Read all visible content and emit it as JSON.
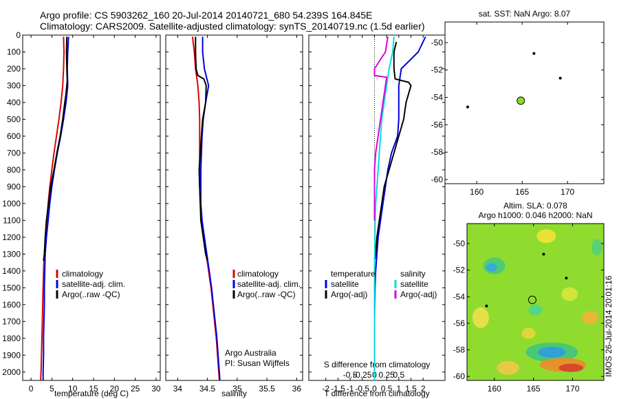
{
  "title_line1": "Argo profile: CS 5903262_160 20-Jul-2014 20140721_680 54.239S 164.845E",
  "title_line2": "Climatology: CARS2009. Satellite-adjusted climatology: synTS_20140719.nc (1.5d earlier)",
  "timestamp": "IMOS 26-Jul-2014 20:01:16",
  "credit_line1": "Argo Australia",
  "credit_line2": "PI: Susan Wijffels",
  "colors": {
    "climatology": "#dd0000",
    "satellite": "#0000dd",
    "argo": "#000000",
    "sal_satellite": "#00dddd",
    "sal_argo": "#dd00dd",
    "float": "#88dd22"
  },
  "legend_temp": [
    "climatology",
    "satellite-adj. clim.",
    "Argo(..raw -QC)"
  ],
  "legend_sal": [
    "climatology",
    "satellite-adj. clim.",
    "Argo(..raw -QC)"
  ],
  "legend_diff": {
    "temperature": "temperature",
    "salinity": "salinity",
    "satellite": "satellite",
    "argo": "Argo(-adj)"
  },
  "chart_data": [
    {
      "type": "line",
      "xlabel": "temperature (deg C)",
      "xlim": [
        -2,
        31
      ],
      "ylim": [
        2050,
        0
      ],
      "xticks": [
        0,
        5,
        10,
        15,
        20,
        25,
        30
      ],
      "yticks": [
        0,
        100,
        200,
        300,
        400,
        500,
        600,
        700,
        800,
        900,
        1000,
        1100,
        1200,
        1300,
        1400,
        1500,
        1600,
        1700,
        1800,
        1900,
        2000
      ],
      "series": [
        {
          "name": "climatology",
          "color": "#dd0000",
          "points": [
            [
              7.8,
              10
            ],
            [
              7.9,
              100
            ],
            [
              7.8,
              200
            ],
            [
              7.6,
              300
            ],
            [
              7.2,
              400
            ],
            [
              6.7,
              500
            ],
            [
              6.1,
              600
            ],
            [
              5.5,
              700
            ],
            [
              5.0,
              800
            ],
            [
              4.5,
              900
            ],
            [
              4.1,
              1000
            ],
            [
              3.8,
              1100
            ],
            [
              3.5,
              1200
            ],
            [
              3.2,
              1300
            ],
            [
              3.0,
              1400
            ],
            [
              2.9,
              1500
            ],
            [
              2.8,
              1600
            ],
            [
              2.7,
              1700
            ],
            [
              2.6,
              1800
            ],
            [
              2.5,
              1900
            ],
            [
              2.4,
              2000
            ],
            [
              2.3,
              2050
            ]
          ]
        },
        {
          "name": "satellite-adj. clim.",
          "color": "#0000dd",
          "points": [
            [
              9.0,
              10
            ],
            [
              8.8,
              100
            ],
            [
              8.7,
              200
            ],
            [
              8.8,
              300
            ],
            [
              8.4,
              400
            ],
            [
              7.8,
              500
            ],
            [
              7.1,
              600
            ],
            [
              6.3,
              700
            ],
            [
              5.6,
              800
            ],
            [
              5.0,
              900
            ],
            [
              4.5,
              1000
            ],
            [
              4.1,
              1100
            ],
            [
              3.7,
              1200
            ],
            [
              3.4,
              1300
            ],
            [
              3.3,
              1400
            ],
            [
              3.2,
              1500
            ],
            [
              3.2,
              1600
            ],
            [
              3.1,
              1700
            ],
            [
              3.0,
              1800
            ],
            [
              3.0,
              1900
            ],
            [
              2.9,
              2000
            ],
            [
              2.9,
              2050
            ]
          ]
        },
        {
          "name": "Argo(..raw -QC)",
          "color": "#000000",
          "points": [
            [
              8.6,
              10
            ],
            [
              8.5,
              100
            ],
            [
              8.6,
              200
            ],
            [
              8.7,
              270
            ],
            [
              8.4,
              350
            ],
            [
              8.1,
              400
            ],
            [
              7.6,
              500
            ],
            [
              7.0,
              600
            ],
            [
              6.2,
              700
            ],
            [
              5.5,
              800
            ],
            [
              4.7,
              900
            ],
            [
              4.2,
              1000
            ],
            [
              3.7,
              1100
            ],
            [
              3.4,
              1200
            ],
            [
              3.2,
              1300
            ],
            [
              3.0,
              1340
            ]
          ]
        }
      ]
    },
    {
      "type": "line",
      "xlabel": "salinity",
      "xlim": [
        33.8,
        36.1
      ],
      "ylim": [
        2050,
        0
      ],
      "xticks": [
        34,
        34.5,
        35,
        35.5,
        36
      ],
      "series": [
        {
          "name": "climatology",
          "color": "#dd0000",
          "points": [
            [
              34.25,
              10
            ],
            [
              34.28,
              100
            ],
            [
              34.3,
              200
            ],
            [
              34.34,
              300
            ],
            [
              34.36,
              400
            ],
            [
              34.37,
              500
            ],
            [
              34.37,
              600
            ],
            [
              34.37,
              700
            ],
            [
              34.37,
              800
            ],
            [
              34.37,
              900
            ],
            [
              34.38,
              1000
            ],
            [
              34.4,
              1100
            ],
            [
              34.44,
              1200
            ],
            [
              34.48,
              1300
            ],
            [
              34.52,
              1400
            ],
            [
              34.56,
              1500
            ],
            [
              34.59,
              1600
            ],
            [
              34.62,
              1700
            ],
            [
              34.65,
              1800
            ],
            [
              34.67,
              1900
            ],
            [
              34.69,
              2000
            ],
            [
              34.7,
              2050
            ]
          ]
        },
        {
          "name": "satellite-adj. clim.",
          "color": "#0000dd",
          "points": [
            [
              34.42,
              10
            ],
            [
              34.42,
              100
            ],
            [
              34.45,
              200
            ],
            [
              34.52,
              300
            ],
            [
              34.47,
              400
            ],
            [
              34.43,
              500
            ],
            [
              34.41,
              600
            ],
            [
              34.4,
              700
            ],
            [
              34.39,
              800
            ],
            [
              34.39,
              900
            ],
            [
              34.39,
              1000
            ],
            [
              34.41,
              1100
            ],
            [
              34.45,
              1200
            ],
            [
              34.49,
              1300
            ],
            [
              34.53,
              1400
            ],
            [
              34.57,
              1500
            ],
            [
              34.6,
              1600
            ],
            [
              34.63,
              1700
            ],
            [
              34.66,
              1800
            ],
            [
              34.68,
              1900
            ],
            [
              34.7,
              2000
            ],
            [
              34.71,
              2050
            ]
          ]
        },
        {
          "name": "Argo(..raw -QC)",
          "color": "#000000",
          "points": [
            [
              34.3,
              10
            ],
            [
              34.3,
              100
            ],
            [
              34.31,
              200
            ],
            [
              34.34,
              240
            ],
            [
              34.44,
              260
            ],
            [
              34.48,
              300
            ],
            [
              34.47,
              400
            ],
            [
              34.42,
              500
            ],
            [
              34.4,
              600
            ],
            [
              34.38,
              700
            ],
            [
              34.36,
              800
            ],
            [
              34.37,
              900
            ],
            [
              34.38,
              1000
            ],
            [
              34.39,
              1100
            ],
            [
              34.43,
              1200
            ],
            [
              34.47,
              1300
            ],
            [
              34.5,
              1340
            ]
          ]
        }
      ]
    },
    {
      "type": "line",
      "xlabel": "T difference from climatology",
      "x2label": "S difference from climatology",
      "xlim": [
        -2.7,
        2.9
      ],
      "ylim": [
        2050,
        0
      ],
      "xticks": [
        -2,
        -1.5,
        -1,
        -0.5,
        0,
        0.5,
        1,
        1.5,
        2
      ],
      "xticklabels": [
        "-2",
        "-1.5",
        "-1",
        "-0.5",
        "0",
        "0.5",
        "1",
        "1.5",
        "2"
      ],
      "x2ticks": [
        -0.5,
        -0.25,
        0,
        0.25,
        0.5
      ],
      "x2ticklabels": [
        "-0.5",
        "-0.25",
        "0",
        "0.25",
        "0.5"
      ],
      "series": [
        {
          "name": "temperature satellite",
          "color": "#0000dd",
          "points": [
            [
              2.1,
              10
            ],
            [
              1.8,
              100
            ],
            [
              1.1,
              200
            ],
            [
              1.0,
              300
            ],
            [
              1.0,
              400
            ],
            [
              1.0,
              500
            ],
            [
              0.95,
              600
            ],
            [
              0.7,
              700
            ],
            [
              0.55,
              800
            ],
            [
              0.45,
              900
            ],
            [
              0.35,
              1000
            ],
            [
              0.25,
              1100
            ],
            [
              0.15,
              1200
            ],
            [
              0.1,
              1300
            ],
            [
              0.05,
              1400
            ],
            [
              0.02,
              1500
            ],
            [
              0.01,
              1600
            ],
            [
              0,
              1700
            ],
            [
              0,
              1800
            ],
            [
              0,
              1900
            ],
            [
              0,
              2000
            ],
            [
              0,
              2050
            ]
          ]
        },
        {
          "name": "temperature Argo(-adj)",
          "color": "#000000",
          "points": [
            [
              0.9,
              40
            ],
            [
              0.8,
              100
            ],
            [
              0.8,
              200
            ],
            [
              0.85,
              260
            ],
            [
              1.4,
              280
            ],
            [
              1.5,
              300
            ],
            [
              1.3,
              400
            ],
            [
              1.2,
              500
            ],
            [
              1.0,
              600
            ],
            [
              0.8,
              700
            ],
            [
              0.6,
              800
            ],
            [
              0.4,
              900
            ],
            [
              0.3,
              1000
            ],
            [
              0.2,
              1100
            ],
            [
              0.1,
              1200
            ],
            [
              0.05,
              1300
            ],
            [
              0.02,
              1330
            ]
          ]
        },
        {
          "name": "salinity satellite",
          "color": "#00dddd",
          "points": [
            [
              0.8,
              10
            ],
            [
              0.75,
              100
            ],
            [
              0.6,
              200
            ],
            [
              0.5,
              300
            ],
            [
              0.4,
              400
            ],
            [
              0.3,
              500
            ],
            [
              0.25,
              600
            ],
            [
              0.2,
              700
            ],
            [
              0.15,
              800
            ],
            [
              0.1,
              900
            ],
            [
              0.05,
              1000
            ],
            [
              0.03,
              1100
            ],
            [
              0.02,
              1200
            ],
            [
              0.01,
              1300
            ],
            [
              0,
              1400
            ],
            [
              0,
              1600
            ],
            [
              0,
              1800
            ],
            [
              0,
              2000
            ],
            [
              0,
              2050
            ]
          ]
        },
        {
          "name": "salinity Argo(-adj)",
          "color": "#dd00dd",
          "points": [
            [
              0.55,
              10
            ],
            [
              0.45,
              100
            ],
            [
              0.0,
              200
            ],
            [
              0.0,
              240
            ],
            [
              0.5,
              250
            ],
            [
              0.45,
              300
            ],
            [
              0.35,
              400
            ],
            [
              0.25,
              500
            ],
            [
              0.15,
              600
            ],
            [
              0.05,
              700
            ],
            [
              0.0,
              800
            ],
            [
              0.0,
              900
            ],
            [
              0.0,
              1000
            ],
            [
              0.0,
              1100
            ]
          ]
        }
      ]
    },
    {
      "type": "scatter",
      "title": "sat. SST: NaN Argo: 8.07",
      "xlim": [
        156.5,
        174
      ],
      "ylim": [
        -60.3,
        -48.5
      ],
      "xticks": [
        160,
        165,
        170
      ],
      "yticks": [
        -50,
        -52,
        -54,
        -56,
        -58,
        -60
      ],
      "float": [
        164.85,
        -54.24
      ],
      "dots": [
        [
          166.3,
          -50.8
        ],
        [
          169.2,
          -52.6
        ],
        [
          159,
          -54.7
        ]
      ]
    },
    {
      "type": "heatmap",
      "title_line1": "Altim. SLA: 0.078",
      "title_line2": "Argo h1000: 0.046 h2000: NaN",
      "xlim": [
        156.5,
        174
      ],
      "ylim": [
        -60.3,
        -48.5
      ],
      "xticks": [
        160,
        165,
        170
      ],
      "yticks": [
        -50,
        -52,
        -54,
        -56,
        -58,
        -60
      ],
      "float": [
        164.85,
        -54.24
      ],
      "dots": [
        [
          166.3,
          -50.8
        ],
        [
          169.2,
          -52.6
        ],
        [
          159,
          -54.7
        ]
      ]
    }
  ]
}
